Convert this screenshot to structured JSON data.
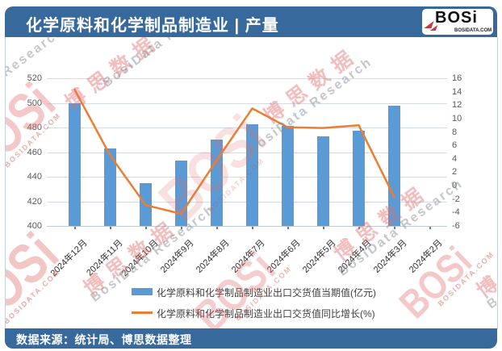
{
  "header": {
    "title": "化学原料和化学制品制造业 | 产量"
  },
  "logo": {
    "text": "BOSi",
    "domain": "BOSIDATA.COM"
  },
  "watermark": {
    "brand": "BOSi",
    "brand_cn": "博思数据",
    "brand_en": "BosiData Research",
    "domain": "BOSIDATA.COM"
  },
  "footer": {
    "text": "数据来源：统计局、博思数据整理"
  },
  "colors": {
    "band": "#38699C",
    "bar": "#5B9BD5",
    "line": "#ED7D31",
    "grid": "#d2dbe6",
    "axis_text": "#595959"
  },
  "chart_data": {
    "type": "bar+line dual-axis",
    "categories": [
      "2024年12月",
      "2024年11月",
      "2024年10月",
      "2024年9月",
      "2024年8月",
      "2024年7月",
      "2024年6月",
      "2024年5月",
      "2024年4月",
      "2024年3月",
      "2024年2月"
    ],
    "series": [
      {
        "name": "化学原料和化学制品制造业出口交货值当期值(亿元)",
        "type": "bar",
        "axis": "left",
        "color": "#5B9BD5",
        "values": [
          499.6,
          462.9,
          434.5,
          452.9,
          470.2,
          482.4,
          481.0,
          472.8,
          477.4,
          497.6,
          null
        ]
      },
      {
        "name": "化学原料和化学制品制造业出口交货值同比增长(%)",
        "type": "line",
        "axis": "right",
        "color": "#ED7D31",
        "values": [
          14.3,
          4.5,
          -2.9,
          -4.2,
          3.8,
          11.5,
          8.7,
          8.6,
          9.0,
          -1.7,
          null
        ]
      }
    ],
    "left_axis": {
      "min": 400,
      "max": 520,
      "step": 20,
      "labels": [
        "400",
        "420",
        "440",
        "460",
        "480",
        "500",
        "520"
      ]
    },
    "right_axis": {
      "min": -6,
      "max": 16,
      "step": 2,
      "labels": [
        "16",
        "14",
        "12",
        "10",
        "8",
        "6",
        "4",
        "2",
        "0",
        "-2",
        "-4",
        "-6"
      ]
    },
    "grid": true,
    "legend_position": "bottom"
  }
}
